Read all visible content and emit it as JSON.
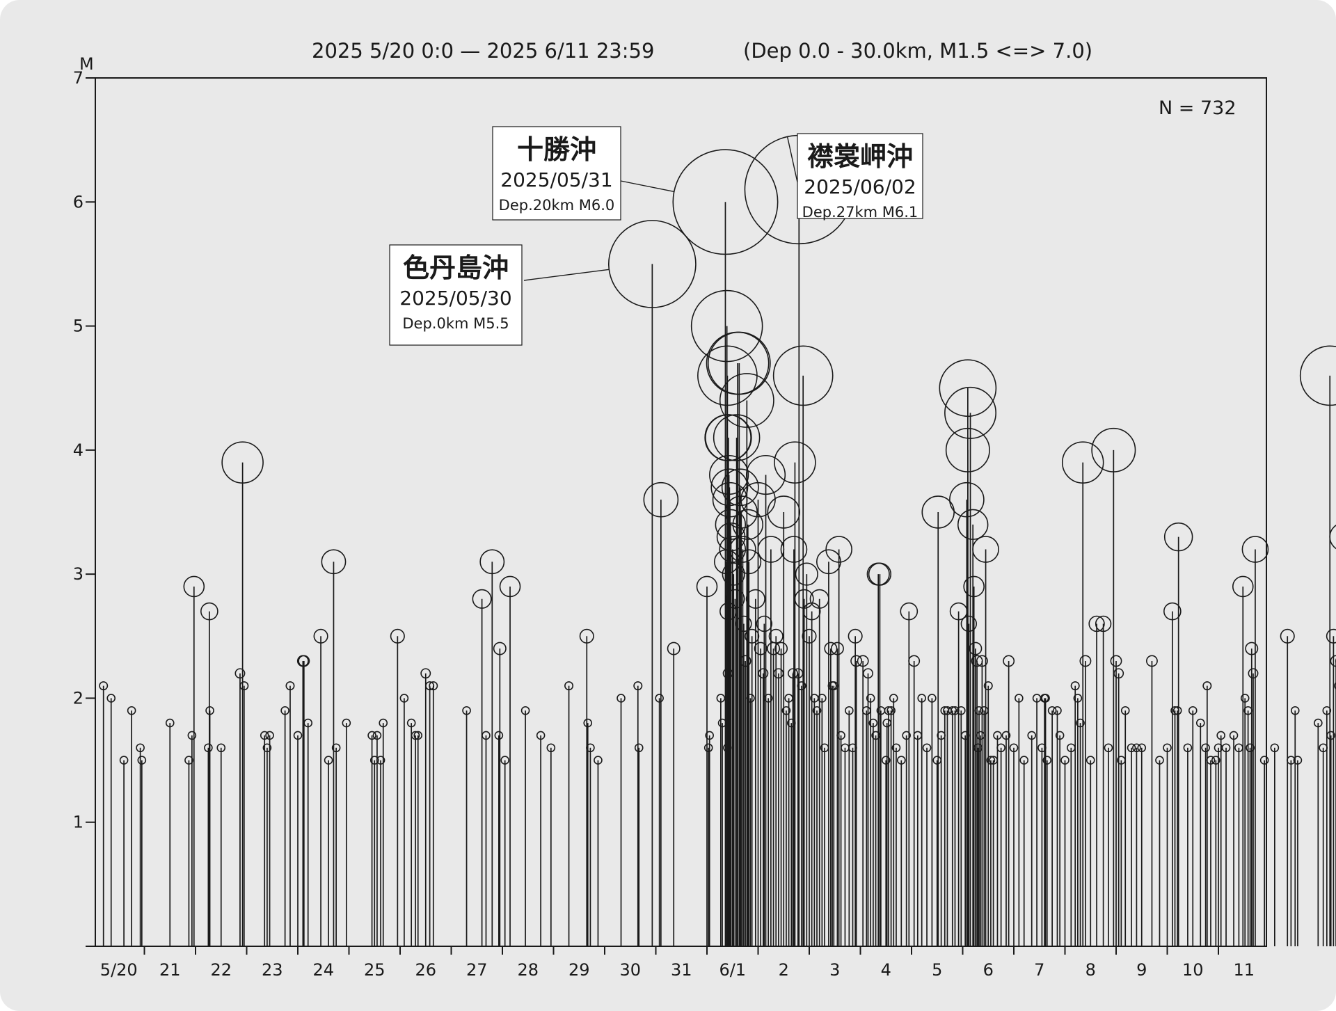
{
  "chart_data": {
    "type": "stem",
    "title": "2025 5/20 0:0 — 2025 6/11 23:59",
    "subtitle": "(Dep 0.0 - 30.0km, M1.5 <=> 7.0)",
    "ylabel": "M",
    "ylim": [
      0,
      7
    ],
    "yticks": [
      1,
      2,
      3,
      4,
      5,
      6,
      7
    ],
    "xlim": [
      "2025-05-20T00:00",
      "2025-06-12T00:00"
    ],
    "x_tick_labels": [
      "5/20",
      "21",
      "22",
      "23",
      "24",
      "25",
      "26",
      "27",
      "28",
      "29",
      "30",
      "31",
      "6/1",
      "2",
      "3",
      "4",
      "5",
      "6",
      "7",
      "8",
      "9",
      "10",
      "11"
    ],
    "count_label": "N = 732",
    "annotations": [
      {
        "name": "色丹島沖",
        "date": "2025/05/30",
        "detail": "Dep.0km M5.5",
        "x": 10.93,
        "y": 5.5
      },
      {
        "name": "十勝沖",
        "date": "2025/05/31",
        "detail": "Dep.20km M6.0",
        "x": 12.37,
        "y": 6.0
      },
      {
        "name": "襟裳岬沖",
        "date": "2025/06/02",
        "detail": "Dep.27km M6.1",
        "x": 13.8,
        "y": 6.1
      }
    ],
    "x_unit_note": "x = days elapsed since 2025-05-20 00:00",
    "points": [
      [
        0.2,
        2.1
      ],
      [
        0.35,
        2.0
      ],
      [
        0.6,
        1.5
      ],
      [
        0.75,
        1.9
      ],
      [
        0.92,
        1.6
      ],
      [
        0.95,
        1.5
      ],
      [
        1.5,
        1.8
      ],
      [
        1.87,
        1.5
      ],
      [
        1.93,
        1.7
      ],
      [
        1.97,
        2.9
      ],
      [
        2.25,
        1.6
      ],
      [
        2.27,
        2.7
      ],
      [
        2.28,
        1.9
      ],
      [
        2.5,
        1.6
      ],
      [
        2.87,
        2.2
      ],
      [
        2.92,
        3.9
      ],
      [
        2.95,
        2.1
      ],
      [
        3.35,
        1.7
      ],
      [
        3.4,
        1.6
      ],
      [
        3.45,
        1.7
      ],
      [
        3.75,
        1.9
      ],
      [
        3.85,
        2.1
      ],
      [
        4.0,
        1.7
      ],
      [
        4.1,
        2.3
      ],
      [
        4.12,
        2.3
      ],
      [
        4.2,
        1.8
      ],
      [
        4.45,
        2.5
      ],
      [
        4.6,
        1.5
      ],
      [
        4.7,
        3.1
      ],
      [
        4.75,
        1.6
      ],
      [
        4.95,
        1.8
      ],
      [
        5.45,
        1.7
      ],
      [
        5.5,
        1.5
      ],
      [
        5.55,
        1.7
      ],
      [
        5.62,
        1.5
      ],
      [
        5.67,
        1.8
      ],
      [
        5.95,
        2.5
      ],
      [
        6.08,
        2.0
      ],
      [
        6.22,
        1.8
      ],
      [
        6.3,
        1.7
      ],
      [
        6.35,
        1.7
      ],
      [
        6.5,
        2.2
      ],
      [
        6.58,
        2.1
      ],
      [
        6.65,
        2.1
      ],
      [
        7.3,
        1.9
      ],
      [
        7.6,
        2.8
      ],
      [
        7.68,
        1.7
      ],
      [
        7.8,
        3.1
      ],
      [
        7.93,
        1.7
      ],
      [
        7.95,
        2.4
      ],
      [
        8.05,
        1.5
      ],
      [
        8.15,
        2.9
      ],
      [
        8.45,
        1.9
      ],
      [
        8.75,
        1.7
      ],
      [
        8.95,
        1.6
      ],
      [
        9.3,
        2.1
      ],
      [
        9.65,
        2.5
      ],
      [
        9.67,
        1.8
      ],
      [
        9.72,
        1.6
      ],
      [
        9.87,
        1.5
      ],
      [
        10.32,
        2.0
      ],
      [
        10.65,
        2.1
      ],
      [
        10.67,
        1.6
      ],
      [
        10.93,
        5.5
      ],
      [
        11.07,
        2.0
      ],
      [
        11.1,
        3.6
      ],
      [
        11.35,
        2.4
      ],
      [
        12.0,
        2.9
      ],
      [
        12.03,
        1.6
      ],
      [
        12.05,
        1.7
      ],
      [
        12.27,
        2.0
      ],
      [
        12.3,
        1.8
      ],
      [
        12.4,
        1.6
      ],
      [
        12.41,
        2.2
      ],
      [
        12.42,
        2.7
      ],
      [
        12.38,
        3.1
      ],
      [
        12.36,
        6.0
      ],
      [
        12.39,
        5.0
      ],
      [
        12.4,
        4.6
      ],
      [
        12.41,
        4.1
      ],
      [
        12.42,
        4.1
      ],
      [
        12.43,
        3.8
      ],
      [
        12.44,
        3.7
      ],
      [
        12.45,
        3.6
      ],
      [
        12.46,
        3.4
      ],
      [
        12.47,
        3.3
      ],
      [
        12.5,
        3.2
      ],
      [
        12.52,
        3.0
      ],
      [
        12.55,
        2.8
      ],
      [
        12.58,
        4.1
      ],
      [
        12.6,
        4.7
      ],
      [
        12.63,
        4.7
      ],
      [
        12.65,
        3.7
      ],
      [
        12.67,
        3.5
      ],
      [
        12.7,
        3.2
      ],
      [
        12.72,
        2.6
      ],
      [
        12.75,
        2.3
      ],
      [
        12.78,
        4.4
      ],
      [
        12.8,
        3.4
      ],
      [
        12.82,
        3.1
      ],
      [
        12.85,
        2.0
      ],
      [
        12.88,
        2.5
      ],
      [
        12.95,
        2.8
      ],
      [
        13.0,
        3.6
      ],
      [
        13.05,
        2.4
      ],
      [
        13.1,
        2.2
      ],
      [
        13.12,
        2.6
      ],
      [
        13.15,
        3.8
      ],
      [
        13.2,
        2.0
      ],
      [
        13.25,
        3.2
      ],
      [
        13.3,
        2.4
      ],
      [
        13.35,
        2.5
      ],
      [
        13.4,
        2.2
      ],
      [
        13.45,
        2.4
      ],
      [
        13.5,
        3.5
      ],
      [
        13.55,
        1.9
      ],
      [
        13.6,
        2.0
      ],
      [
        13.65,
        1.8
      ],
      [
        13.68,
        2.2
      ],
      [
        13.7,
        3.2
      ],
      [
        13.72,
        3.9
      ],
      [
        13.78,
        2.2
      ],
      [
        13.8,
        6.1
      ],
      [
        13.85,
        2.1
      ],
      [
        13.88,
        4.6
      ],
      [
        13.9,
        2.8
      ],
      [
        13.95,
        3.0
      ],
      [
        14.0,
        2.5
      ],
      [
        14.05,
        2.7
      ],
      [
        14.1,
        2.0
      ],
      [
        14.15,
        1.9
      ],
      [
        14.2,
        2.8
      ],
      [
        14.25,
        2.0
      ],
      [
        14.3,
        1.6
      ],
      [
        14.38,
        3.1
      ],
      [
        14.42,
        2.4
      ],
      [
        14.45,
        2.1
      ],
      [
        14.48,
        2.1
      ],
      [
        14.55,
        2.4
      ],
      [
        14.58,
        3.2
      ],
      [
        14.62,
        1.7
      ],
      [
        14.7,
        1.6
      ],
      [
        14.78,
        1.9
      ],
      [
        14.85,
        1.6
      ],
      [
        14.9,
        2.5
      ],
      [
        14.92,
        2.3
      ],
      [
        15.05,
        2.3
      ],
      [
        15.12,
        1.9
      ],
      [
        15.15,
        2.2
      ],
      [
        15.2,
        2.0
      ],
      [
        15.25,
        1.8
      ],
      [
        15.3,
        1.7
      ],
      [
        15.35,
        3.0
      ],
      [
        15.38,
        3.0
      ],
      [
        15.4,
        1.9
      ],
      [
        15.5,
        1.5
      ],
      [
        15.52,
        1.8
      ],
      [
        15.55,
        1.9
      ],
      [
        15.6,
        1.9
      ],
      [
        15.65,
        2.0
      ],
      [
        15.7,
        1.6
      ],
      [
        15.8,
        1.5
      ],
      [
        15.9,
        1.7
      ],
      [
        15.95,
        2.7
      ],
      [
        16.05,
        2.3
      ],
      [
        16.12,
        1.7
      ],
      [
        16.2,
        2.0
      ],
      [
        16.3,
        1.6
      ],
      [
        16.4,
        2.0
      ],
      [
        16.5,
        1.5
      ],
      [
        16.52,
        3.5
      ],
      [
        16.58,
        1.7
      ],
      [
        16.65,
        1.9
      ],
      [
        16.7,
        1.9
      ],
      [
        16.8,
        1.9
      ],
      [
        16.85,
        1.9
      ],
      [
        16.92,
        2.7
      ],
      [
        16.97,
        1.9
      ],
      [
        17.05,
        1.7
      ],
      [
        17.1,
        4.5
      ],
      [
        17.12,
        2.6
      ],
      [
        17.15,
        4.3
      ],
      [
        17.1,
        4.0
      ],
      [
        17.08,
        3.6
      ],
      [
        17.2,
        3.4
      ],
      [
        17.22,
        2.9
      ],
      [
        17.25,
        2.4
      ],
      [
        17.28,
        2.3
      ],
      [
        17.3,
        1.6
      ],
      [
        17.32,
        1.9
      ],
      [
        17.35,
        1.7
      ],
      [
        17.38,
        2.3
      ],
      [
        17.42,
        1.9
      ],
      [
        17.45,
        3.2
      ],
      [
        17.5,
        2.1
      ],
      [
        17.55,
        1.5
      ],
      [
        17.6,
        1.5
      ],
      [
        17.68,
        1.7
      ],
      [
        17.75,
        1.6
      ],
      [
        17.85,
        1.7
      ],
      [
        17.9,
        2.3
      ],
      [
        18.0,
        1.6
      ],
      [
        18.1,
        2.0
      ],
      [
        18.2,
        1.5
      ],
      [
        18.35,
        1.7
      ],
      [
        18.45,
        2.0
      ],
      [
        18.55,
        1.6
      ],
      [
        18.6,
        2.0
      ],
      [
        18.62,
        2.0
      ],
      [
        18.65,
        1.5
      ],
      [
        18.75,
        1.9
      ],
      [
        18.85,
        1.9
      ],
      [
        18.9,
        1.7
      ],
      [
        19.0,
        1.5
      ],
      [
        19.12,
        1.6
      ],
      [
        19.2,
        2.1
      ],
      [
        19.25,
        2.0
      ],
      [
        19.3,
        1.8
      ],
      [
        19.35,
        3.9
      ],
      [
        19.4,
        2.3
      ],
      [
        19.5,
        1.5
      ],
      [
        19.62,
        2.6
      ],
      [
        19.75,
        2.6
      ],
      [
        19.85,
        1.6
      ],
      [
        19.95,
        4.0
      ],
      [
        20.0,
        2.3
      ],
      [
        20.05,
        2.2
      ],
      [
        20.1,
        1.5
      ],
      [
        20.18,
        1.9
      ],
      [
        20.3,
        1.6
      ],
      [
        20.4,
        1.6
      ],
      [
        20.5,
        1.6
      ],
      [
        20.7,
        2.3
      ],
      [
        20.85,
        1.5
      ],
      [
        21.0,
        1.6
      ],
      [
        21.1,
        2.7
      ],
      [
        21.15,
        1.9
      ],
      [
        21.22,
        3.3
      ],
      [
        21.2,
        1.9
      ],
      [
        21.4,
        1.6
      ],
      [
        21.5,
        1.9
      ],
      [
        21.65,
        1.8
      ],
      [
        21.75,
        1.6
      ],
      [
        21.78,
        2.1
      ],
      [
        21.85,
        1.5
      ],
      [
        21.95,
        1.5
      ],
      [
        22.0,
        1.6
      ],
      [
        22.05,
        1.7
      ],
      [
        22.15,
        1.6
      ],
      [
        22.3,
        1.7
      ],
      [
        22.4,
        1.6
      ],
      [
        22.48,
        2.9
      ],
      [
        22.52,
        2.0
      ],
      [
        22.58,
        1.9
      ],
      [
        22.62,
        1.6
      ],
      [
        22.65,
        2.4
      ],
      [
        22.68,
        2.2
      ],
      [
        22.72,
        3.2
      ],
      [
        22.9,
        1.5
      ],
      [
        23.1,
        1.6
      ],
      [
        23.35,
        2.5
      ],
      [
        23.42,
        1.5
      ],
      [
        23.5,
        1.9
      ],
      [
        23.55,
        1.5
      ],
      [
        23.95,
        1.8
      ],
      [
        24.05,
        1.6
      ],
      [
        24.12,
        1.9
      ],
      [
        24.18,
        4.6
      ],
      [
        24.2,
        1.7
      ],
      [
        24.25,
        2.5
      ],
      [
        24.3,
        2.3
      ],
      [
        24.35,
        2.1
      ],
      [
        24.4,
        2.3
      ],
      [
        24.42,
        1.7
      ],
      [
        24.45,
        3.3
      ],
      [
        24.5,
        2.3
      ]
    ]
  }
}
